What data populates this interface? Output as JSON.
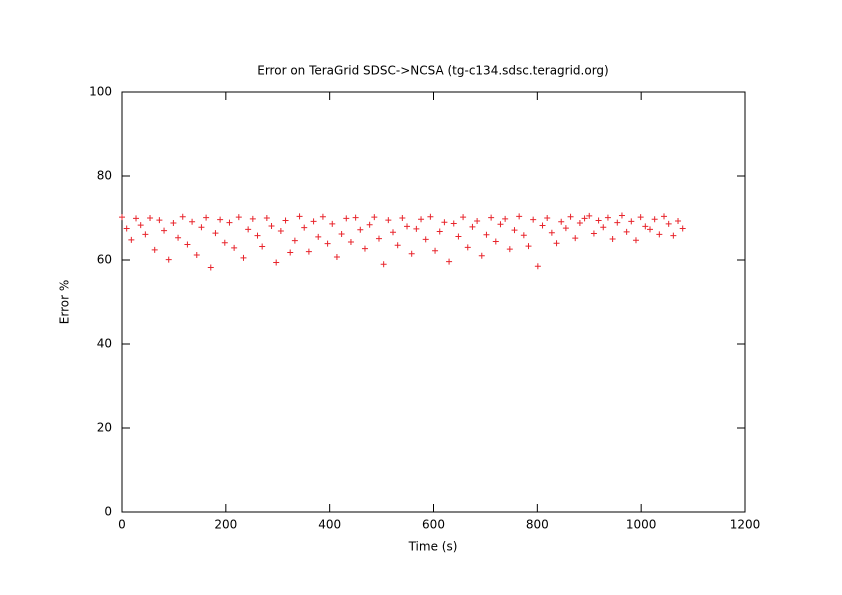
{
  "chart_data": {
    "type": "scatter",
    "title": "Error on TeraGrid SDSC->NCSA (tg-c134.sdsc.teragrid.org)",
    "x_label": "Time (s)",
    "y_label": "Error %",
    "xlim": [
      0,
      1200
    ],
    "xticks": [
      0,
      200,
      400,
      600,
      800,
      1000,
      1200
    ],
    "ylim": [
      0,
      100
    ],
    "yticks": [
      0,
      20,
      40,
      60,
      80,
      100
    ],
    "color": "#e8242b",
    "x": [
      0,
      9,
      18,
      27,
      36,
      45,
      54,
      63,
      72,
      81,
      90,
      99,
      108,
      117,
      126,
      135,
      144,
      153,
      162,
      171,
      180,
      189,
      198,
      207,
      216,
      225,
      234,
      243,
      252,
      261,
      270,
      279,
      288,
      297,
      306,
      315,
      324,
      333,
      342,
      351,
      360,
      369,
      378,
      387,
      396,
      405,
      414,
      423,
      432,
      441,
      450,
      459,
      468,
      477,
      486,
      495,
      504,
      513,
      522,
      531,
      540,
      549,
      558,
      567,
      576,
      585,
      594,
      603,
      612,
      621,
      630,
      639,
      648,
      657,
      666,
      675,
      684,
      693,
      702,
      711,
      720,
      729,
      738,
      747,
      756,
      765,
      774,
      783,
      792,
      801,
      810,
      819,
      828,
      837,
      846,
      855,
      864,
      873,
      882,
      891,
      900,
      909,
      918,
      927,
      936,
      945,
      954,
      963,
      972,
      981,
      990,
      999,
      1008,
      1017,
      1026,
      1035,
      1044,
      1053,
      1062,
      1071,
      1080
    ],
    "y": [
      70.2,
      67.5,
      64.8,
      69.9,
      68.3,
      66.1,
      70.0,
      62.4,
      69.5,
      67.0,
      60.1,
      68.8,
      65.3,
      70.3,
      63.7,
      69.1,
      61.2,
      67.8,
      70.1,
      58.2,
      66.4,
      69.6,
      64.1,
      68.9,
      62.9,
      70.2,
      60.5,
      67.3,
      69.8,
      65.8,
      63.2,
      70.0,
      68.1,
      59.4,
      66.9,
      69.4,
      61.8,
      64.6,
      70.4,
      67.7,
      62.0,
      69.2,
      65.5,
      70.3,
      63.9,
      68.6,
      60.7,
      66.2,
      69.9,
      64.3,
      70.1,
      67.2,
      62.7,
      68.4,
      70.2,
      65.1,
      59.0,
      69.5,
      66.6,
      63.5,
      70.0,
      68.0,
      61.5,
      67.4,
      69.7,
      64.9,
      70.3,
      62.2,
      66.8,
      69.0,
      59.6,
      68.7,
      65.6,
      70.2,
      63.0,
      67.9,
      69.3,
      61.0,
      66.0,
      70.1,
      64.4,
      68.5,
      69.8,
      62.6,
      67.1,
      70.4,
      65.9,
      63.3,
      69.6,
      58.5,
      68.2,
      70.0,
      66.5,
      64.0,
      69.1,
      67.6,
      70.3,
      65.2,
      68.8,
      69.9,
      70.5,
      66.3,
      69.4,
      67.8,
      70.1,
      65.0,
      68.9,
      70.6,
      66.7,
      69.2,
      64.7,
      70.2,
      68.0,
      67.3,
      69.7,
      66.1,
      70.4,
      68.6,
      65.8,
      69.3,
      67.5
    ]
  }
}
